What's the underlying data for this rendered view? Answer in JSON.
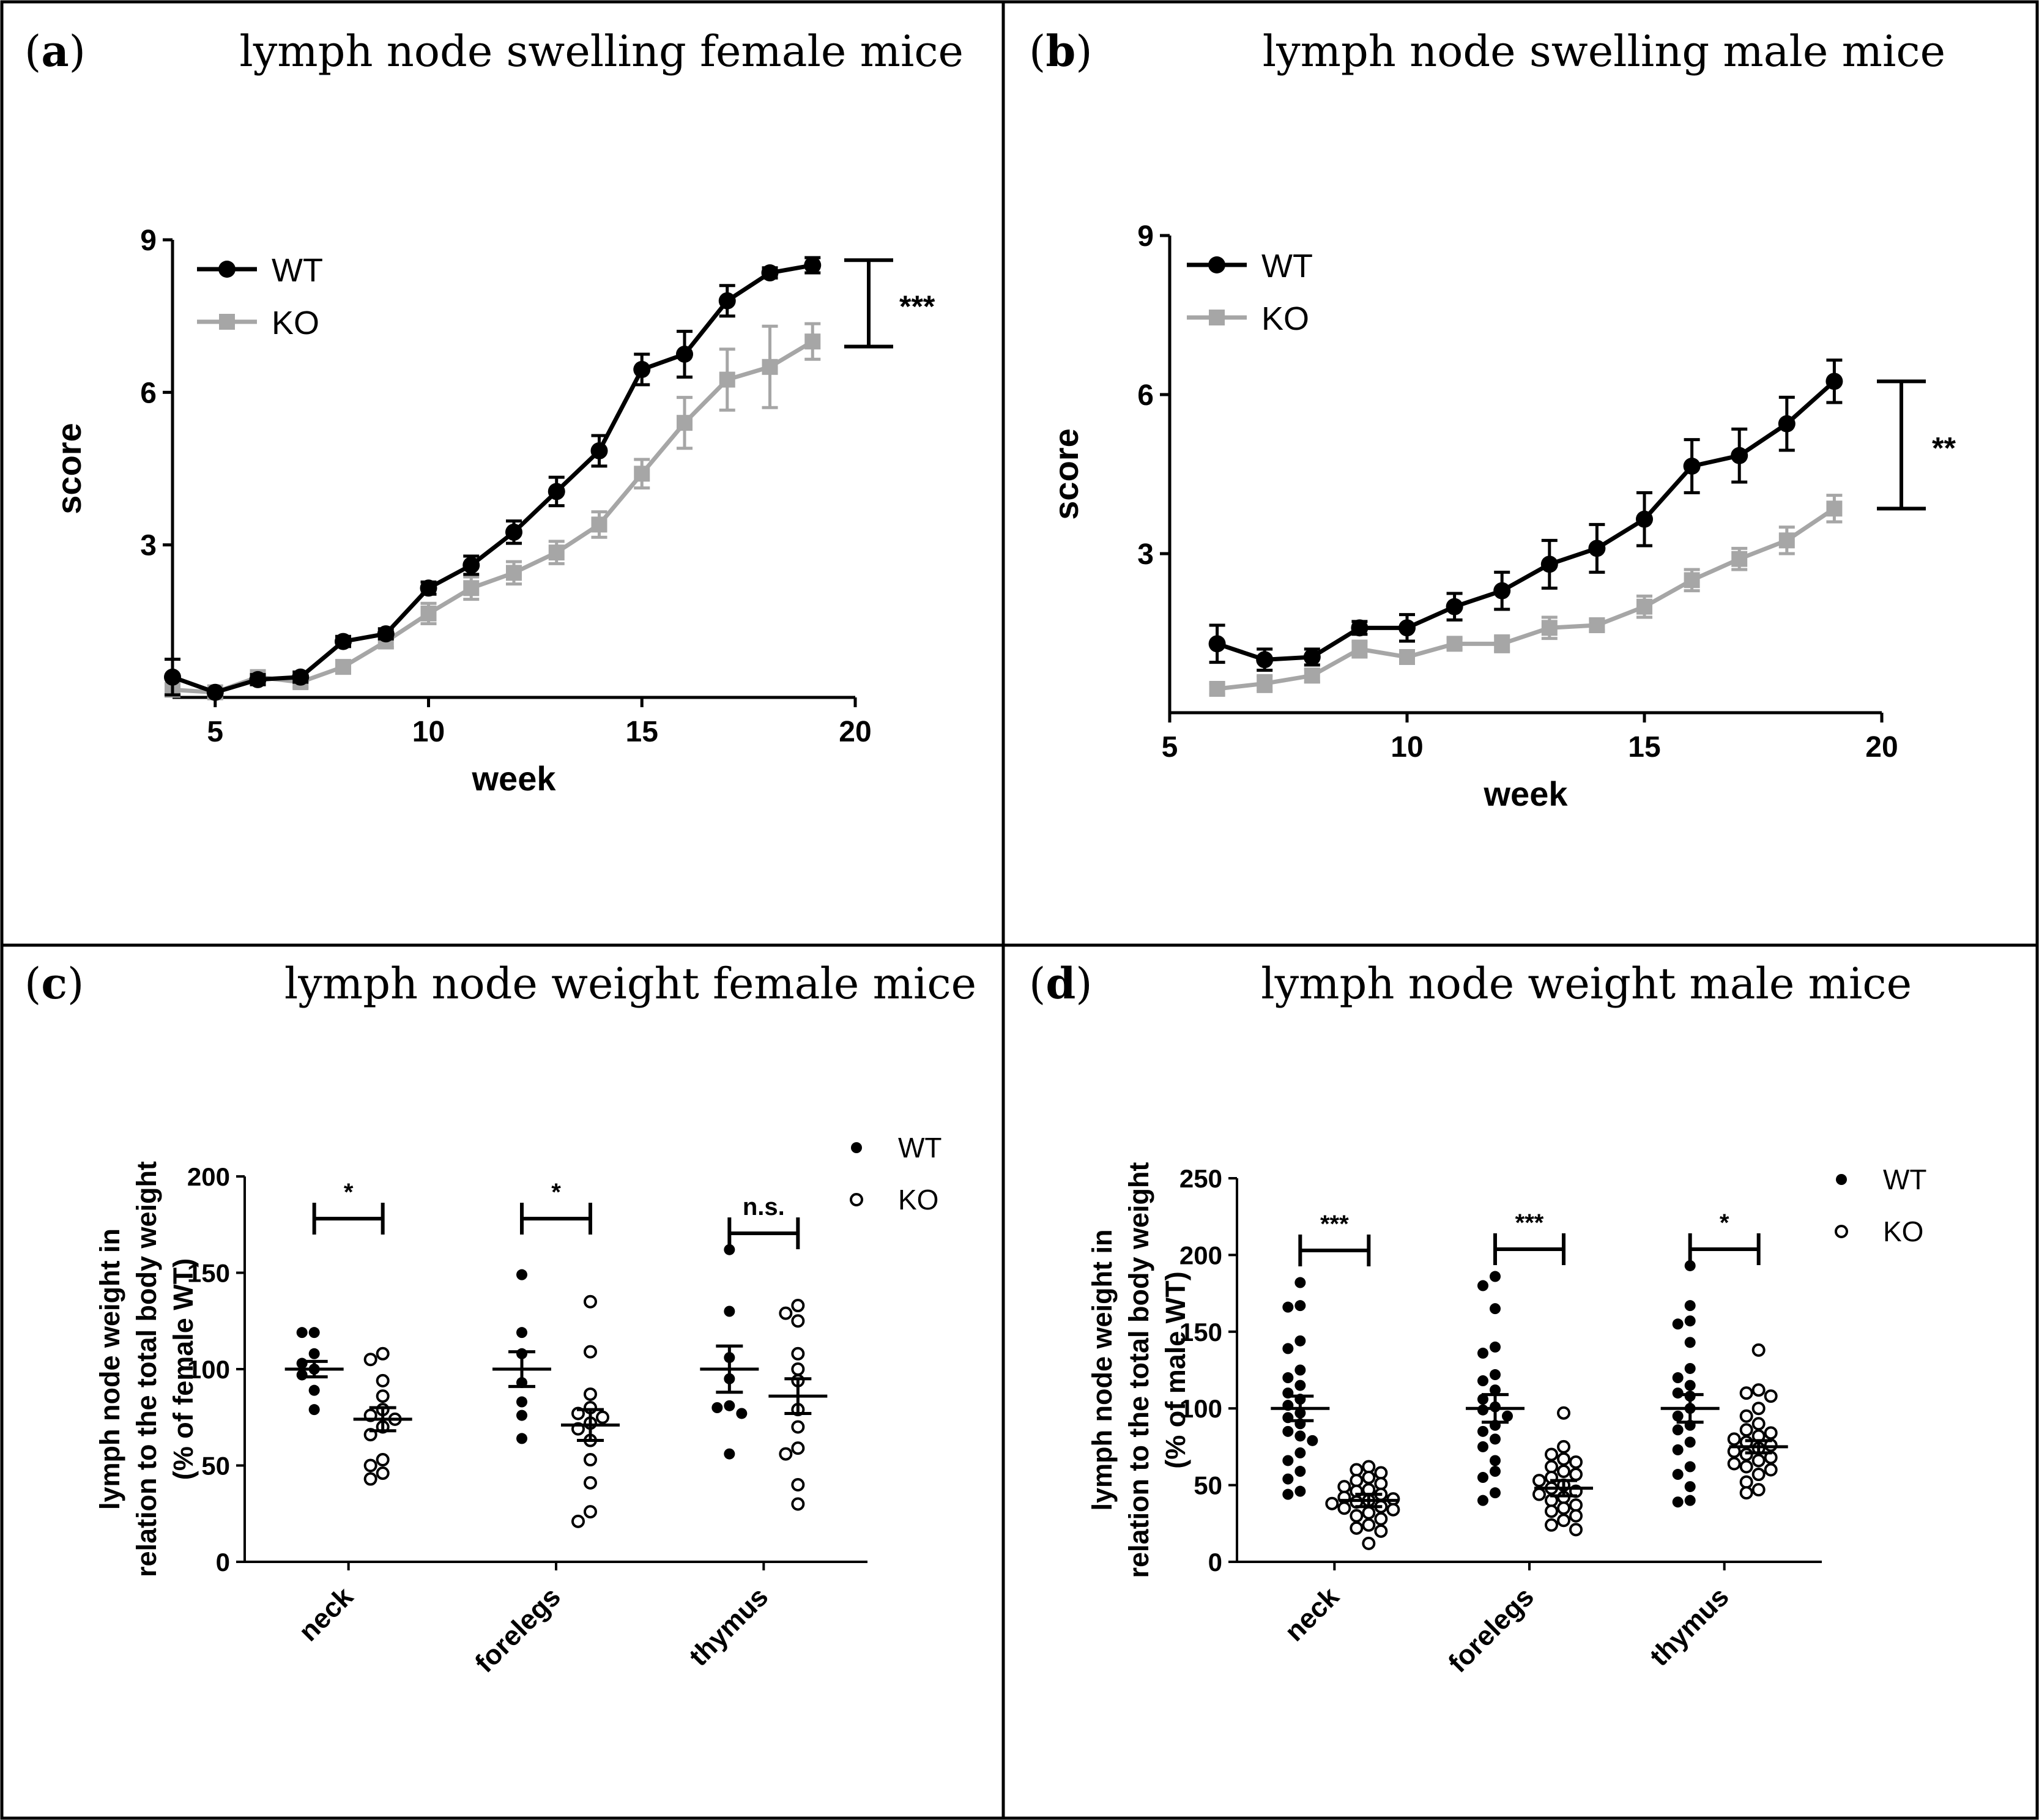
{
  "panels": {
    "a": {
      "letter": "a",
      "title": "lymph node swelling female mice"
    },
    "b": {
      "letter": "b",
      "title": "lymph node swelling male mice"
    },
    "c": {
      "letter": "c",
      "title": "lymph node weight female mice"
    },
    "d": {
      "letter": "d",
      "title": "lymph node weight male mice"
    }
  },
  "colors": {
    "wt": "#000000",
    "ko": "#a6a6a6",
    "frame": "#000000"
  },
  "chart_data": [
    {
      "id": "a",
      "type": "line",
      "xlabel": "week",
      "ylabel": "score",
      "xlim": [
        4,
        20
      ],
      "ylim": [
        0,
        9
      ],
      "xticks": [
        5,
        10,
        15,
        20
      ],
      "yticks": [
        3,
        6,
        9
      ],
      "legend": "top-left",
      "significance": "***",
      "series": [
        {
          "name": "WT",
          "x": [
            4,
            5,
            6,
            7,
            8,
            9,
            10,
            11,
            12,
            13,
            14,
            15,
            16,
            17,
            18,
            19
          ],
          "y": [
            0.4,
            0.1,
            0.35,
            0.4,
            1.1,
            1.25,
            2.15,
            2.6,
            3.25,
            4.05,
            4.85,
            6.45,
            6.75,
            7.8,
            8.35,
            8.5
          ],
          "err": [
            0.35,
            0.05,
            0.1,
            0.1,
            0.1,
            0.1,
            0.12,
            0.18,
            0.22,
            0.28,
            0.3,
            0.3,
            0.45,
            0.3,
            0.1,
            0.15
          ]
        },
        {
          "name": "KO",
          "x": [
            4,
            5,
            6,
            7,
            8,
            9,
            10,
            11,
            12,
            13,
            14,
            15,
            16,
            17,
            18,
            19
          ],
          "y": [
            0.15,
            0.1,
            0.4,
            0.3,
            0.6,
            1.1,
            1.65,
            2.15,
            2.45,
            2.85,
            3.4,
            4.4,
            5.4,
            6.25,
            6.5,
            7.0
          ],
          "err": [
            0.1,
            0.05,
            0.1,
            0.1,
            0.12,
            0.12,
            0.2,
            0.22,
            0.22,
            0.22,
            0.25,
            0.28,
            0.5,
            0.6,
            0.8,
            0.35
          ]
        }
      ]
    },
    {
      "id": "b",
      "type": "line",
      "xlabel": "week",
      "ylabel": "score",
      "xlim": [
        5,
        20
      ],
      "ylim": [
        0,
        9
      ],
      "xticks": [
        5,
        10,
        15,
        20
      ],
      "yticks": [
        3,
        6,
        9
      ],
      "legend": "top-left",
      "significance": "**",
      "series": [
        {
          "name": "WT",
          "x": [
            6,
            7,
            8,
            9,
            10,
            11,
            12,
            13,
            14,
            15,
            16,
            17,
            18,
            19
          ],
          "y": [
            1.3,
            1.0,
            1.05,
            1.6,
            1.6,
            2.0,
            2.3,
            2.8,
            3.1,
            3.65,
            4.65,
            4.85,
            5.45,
            6.25
          ],
          "err": [
            0.35,
            0.2,
            0.15,
            0.12,
            0.25,
            0.25,
            0.35,
            0.45,
            0.45,
            0.5,
            0.5,
            0.5,
            0.5,
            0.4
          ]
        },
        {
          "name": "KO",
          "x": [
            6,
            7,
            8,
            9,
            10,
            11,
            12,
            13,
            14,
            15,
            16,
            17,
            18,
            19
          ],
          "y": [
            0.45,
            0.55,
            0.7,
            1.2,
            1.05,
            1.3,
            1.3,
            1.6,
            1.65,
            2.0,
            2.5,
            2.9,
            3.25,
            3.85
          ],
          "err": [
            0.1,
            0.15,
            0.12,
            0.15,
            0.1,
            0.1,
            0.15,
            0.2,
            0.1,
            0.2,
            0.2,
            0.2,
            0.25,
            0.25
          ]
        }
      ]
    },
    {
      "id": "c",
      "type": "scatter",
      "ylabel_lines": [
        "lymph node weight in",
        "relation to the total body weight",
        "(% of  female WT)"
      ],
      "categories": [
        "neck",
        "forelegs",
        "thymus"
      ],
      "ylim": [
        0,
        200
      ],
      "yticks": [
        0,
        50,
        100,
        150,
        200
      ],
      "legend": "top-right",
      "significance": [
        "*",
        "*",
        "n.s."
      ],
      "series": [
        {
          "name": "WT",
          "marker": "filled",
          "groups": [
            [
              119,
              119,
              108,
              103,
              100,
              97,
              89,
              79
            ],
            [
              149,
              119,
              108,
              93,
              83,
              76,
              64
            ],
            [
              162,
              130,
              106,
              95,
              81,
              80,
              77,
              56
            ]
          ],
          "mean": [
            100,
            100,
            100
          ],
          "sem": [
            4,
            9,
            12
          ]
        },
        {
          "name": "KO",
          "marker": "open",
          "groups": [
            [
              108,
              105,
              94,
              86,
              79,
              76,
              74,
              70,
              66,
              53,
              50,
              46,
              43
            ],
            [
              135,
              109,
              87,
              80,
              77,
              75,
              72,
              69,
              63,
              53,
              41,
              26,
              21
            ],
            [
              133,
              129,
              125,
              108,
              100,
              94,
              79,
              70,
              59,
              56,
              40,
              30
            ]
          ],
          "mean": [
            74,
            71,
            86
          ],
          "sem": [
            6,
            8,
            9
          ]
        }
      ]
    },
    {
      "id": "d",
      "type": "scatter",
      "ylabel_lines": [
        "lymph node weight in",
        "relation to the total body weight",
        "(% of  male WT)"
      ],
      "categories": [
        "neck",
        "forelegs",
        "thymus"
      ],
      "ylim": [
        0,
        250
      ],
      "yticks": [
        0,
        50,
        100,
        150,
        200,
        250
      ],
      "legend": "top-right",
      "significance": [
        "***",
        "***",
        "*"
      ],
      "series": [
        {
          "name": "WT",
          "marker": "filled",
          "groups": [
            [
              182,
              167,
              166,
              144,
              139,
              125,
              120,
              115,
              110,
              106,
              102,
              97,
              94,
              90,
              85,
              82,
              79,
              71,
              66,
              59,
              54,
              46,
              44
            ],
            [
              186,
              180,
              165,
              140,
              136,
              122,
              118,
              112,
              106,
              101,
              99,
              95,
              89,
              85,
              80,
              75,
              66,
              59,
              55,
              45,
              40
            ],
            [
              193,
              167,
              157,
              155,
              143,
              126,
              120,
              115,
              110,
              108,
              100,
              95,
              89,
              86,
              78,
              73,
              62,
              57,
              49,
              40,
              39
            ]
          ],
          "mean": [
            100,
            100,
            100
          ],
          "sem": [
            8,
            9,
            9
          ]
        },
        {
          "name": "KO",
          "marker": "open",
          "groups": [
            [
              62,
              60,
              58,
              55,
              53,
              51,
              49,
              47,
              46,
              44,
              42,
              41,
              40,
              39,
              38,
              36,
              35,
              34,
              32,
              30,
              28,
              24,
              22,
              20,
              12
            ],
            [
              97,
              75,
              70,
              67,
              65,
              62,
              59,
              57,
              55,
              53,
              50,
              48,
              46,
              44,
              42,
              40,
              37,
              35,
              33,
              30,
              27,
              24,
              21
            ],
            [
              138,
              112,
              110,
              108,
              100,
              95,
              90,
              86,
              84,
              82,
              80,
              78,
              76,
              74,
              72,
              70,
              68,
              66,
              64,
              62,
              60,
              57,
              52,
              47,
              45
            ]
          ],
          "mean": [
            40,
            48,
            75
          ],
          "sem": [
            4,
            5,
            4
          ]
        }
      ]
    }
  ]
}
